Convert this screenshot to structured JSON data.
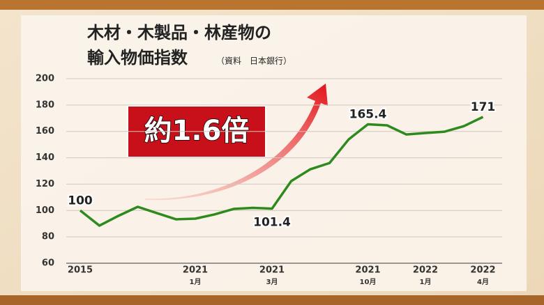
{
  "chart_data": {
    "type": "line",
    "title": "木材・木製品・林産物の",
    "subtitle": "輸入物価指数",
    "source": "（資料　日本銀行）",
    "annotation": "約1.6倍",
    "categories": [
      "2015",
      null,
      null,
      null,
      null,
      null,
      "2021",
      null,
      null,
      null,
      "2021",
      null,
      null,
      null,
      null,
      "2021",
      null,
      null,
      "2022",
      null,
      null,
      "2022"
    ],
    "category_months": [
      null,
      null,
      null,
      null,
      null,
      null,
      "1月",
      null,
      null,
      null,
      "3月",
      null,
      null,
      null,
      null,
      "10月",
      null,
      null,
      "1月",
      null,
      null,
      "4月"
    ],
    "values": [
      100,
      88.5,
      96,
      102.8,
      98,
      93.3,
      93.8,
      97,
      101.2,
      102,
      101.4,
      122.3,
      131.3,
      136,
      154,
      165.4,
      164.6,
      157.7,
      158.8,
      159.8,
      164,
      171
    ],
    "value_labels": [
      "100",
      null,
      null,
      null,
      null,
      null,
      null,
      null,
      null,
      null,
      "101.4",
      null,
      null,
      null,
      null,
      "165.4",
      null,
      null,
      null,
      null,
      null,
      "171"
    ],
    "color": "#2f8a1e",
    "ylim": [
      60,
      200
    ],
    "yticks": [
      60,
      80,
      100,
      120,
      140,
      160,
      180,
      200
    ],
    "grid": true
  }
}
